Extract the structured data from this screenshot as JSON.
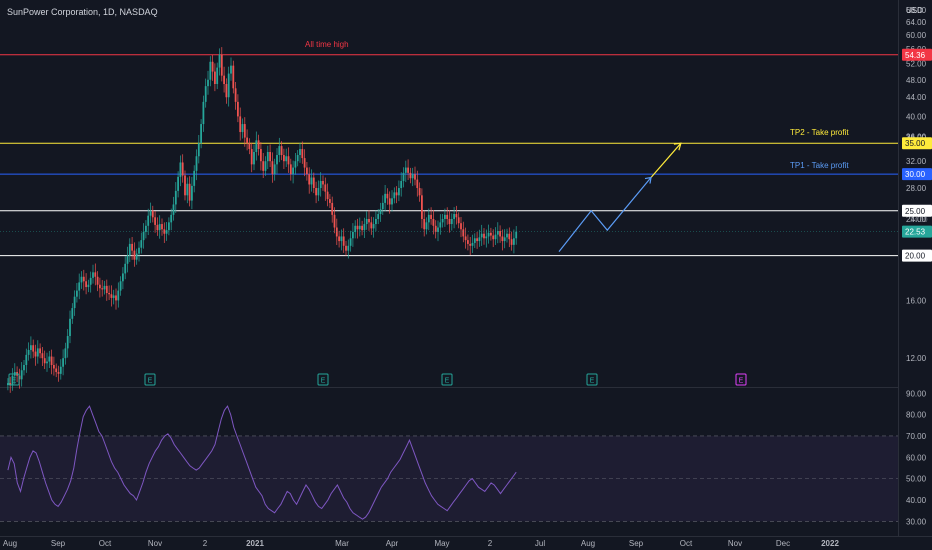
{
  "header": {
    "title": "SunPower Corporation, 1D, NASDAQ"
  },
  "currency": "USD",
  "colors": {
    "background": "#131722",
    "up": "#26a69a",
    "down": "#ef5350",
    "rsi": "#7e57c2",
    "ath_line": "#f23645",
    "tp2_line": "#ffeb3b",
    "tp1_line": "#2962ff",
    "support_line": "#ffffff",
    "projection": "#5b9cf6",
    "current_price_badge": "#26a69a"
  },
  "chart_data": {
    "type": "candlestick",
    "price_axis": {
      "min": 10.5,
      "max": 70,
      "ticks": [
        12,
        16,
        20,
        24,
        28,
        32,
        36,
        40,
        44,
        48,
        52,
        56,
        60,
        64,
        68
      ],
      "labels": [
        "12.00",
        "16.00",
        "20.00",
        "24.00",
        "28.00",
        "32.00",
        "36.00",
        "40.00",
        "44.00",
        "48.00",
        "52.00",
        "56.00",
        "60.00",
        "64.00",
        "68.00"
      ]
    },
    "rsi_axis": {
      "min": 25,
      "max": 92,
      "ticks": [
        30,
        40,
        50,
        60,
        70,
        80,
        90
      ],
      "labels": [
        "30.00",
        "40.00",
        "50.00",
        "60.00",
        "70.00",
        "80.00",
        "90.00"
      ],
      "upper_band": 70,
      "mid": 50,
      "lower_band": 30
    },
    "time_axis": [
      "Aug",
      "Sep",
      "Oct",
      "Nov",
      "2",
      "2021",
      "Mar",
      "Apr",
      "May",
      "2",
      "Jul",
      "Aug",
      "Sep",
      "Oct",
      "Nov",
      "Dec",
      "2022"
    ],
    "earnings_markers": [
      "E",
      "E",
      "E",
      "E",
      "E",
      "E"
    ],
    "closes": [
      10.6,
      10.5,
      11.0,
      11.2,
      11.0,
      10.8,
      11.3,
      11.6,
      12.2,
      12.5,
      12.8,
      12.4,
      12.1,
      12.6,
      12.3,
      12.0,
      11.7,
      11.8,
      12.1,
      11.6,
      11.4,
      11.2,
      11.1,
      11.5,
      12.0,
      12.6,
      13.4,
      14.6,
      15.4,
      16.3,
      16.8,
      17.5,
      18.0,
      17.6,
      17.1,
      17.3,
      17.9,
      18.4,
      18.0,
      17.3,
      17.0,
      16.9,
      17.2,
      16.6,
      16.5,
      16.2,
      16.4,
      16.0,
      16.8,
      17.6,
      18.3,
      19.2,
      20.0,
      21.2,
      20.5,
      19.6,
      20.2,
      20.8,
      21.6,
      22.5,
      23.2,
      24.4,
      25.0,
      24.2,
      23.3,
      22.7,
      23.4,
      22.8,
      22.3,
      22.7,
      23.6,
      24.5,
      25.8,
      27.6,
      29.6,
      31.8,
      29.8,
      27.0,
      28.6,
      26.3,
      28.3,
      30.5,
      32.8,
      35.0,
      38.5,
      43.0,
      46.5,
      48.0,
      52.5,
      50.0,
      47.0,
      51.0,
      54.4,
      49.0,
      47.0,
      44.0,
      49.5,
      51.5,
      46.0,
      43.0,
      40.0,
      37.0,
      38.5,
      36.0,
      35.0,
      34.0,
      31.5,
      33.5,
      35.5,
      34.0,
      32.0,
      30.5,
      32.0,
      33.5,
      32.0,
      30.0,
      31.5,
      33.0,
      34.5,
      33.0,
      32.0,
      32.8,
      31.5,
      30.0,
      31.0,
      32.0,
      33.0,
      34.0,
      32.5,
      31.0,
      30.0,
      28.5,
      29.5,
      28.0,
      27.0,
      28.0,
      29.0,
      28.5,
      27.5,
      26.5,
      26.0,
      24.5,
      23.0,
      22.0,
      21.5,
      22.0,
      21.0,
      20.5,
      21.0,
      21.8,
      22.5,
      23.2,
      22.8,
      23.2,
      22.7,
      23.4,
      24.0,
      23.6,
      22.9,
      23.4,
      24.0,
      24.6,
      25.2,
      26.0,
      27.2,
      26.6,
      25.8,
      26.6,
      27.4,
      27.0,
      28.0,
      29.0,
      30.2,
      31.0,
      30.2,
      29.4,
      30.0,
      29.2,
      28.0,
      27.0,
      24.0,
      22.8,
      23.6,
      24.5,
      24.0,
      23.2,
      22.5,
      23.0,
      23.6,
      24.0,
      24.5,
      24.0,
      23.4,
      24.0,
      24.6,
      24.2,
      23.5,
      22.8,
      22.0,
      21.6,
      21.2,
      21.0,
      21.3,
      21.8,
      21.5,
      21.9,
      22.3,
      21.8,
      22.0,
      22.4,
      22.1,
      21.7,
      22.2,
      22.6,
      22.0,
      21.5,
      21.9,
      22.3,
      21.7,
      21.1,
      21.8,
      22.53
    ],
    "current_price": 22.53,
    "current_price_label": "22.53",
    "hidden_label_value": 24.0,
    "rsi": [
      54,
      60,
      57,
      48,
      44,
      50,
      55,
      60,
      63,
      62,
      58,
      53,
      48,
      44,
      40,
      38,
      37,
      39,
      42,
      45,
      49,
      55,
      64,
      72,
      79,
      82,
      84,
      80,
      76,
      72,
      70,
      66,
      62,
      58,
      55,
      53,
      50,
      47,
      45,
      43,
      42,
      40,
      44,
      48,
      53,
      57,
      60,
      63,
      65,
      68,
      70,
      71,
      69,
      66,
      64,
      62,
      60,
      58,
      56,
      55,
      54,
      55,
      57,
      59,
      61,
      63,
      66,
      72,
      78,
      82,
      84,
      80,
      74,
      70,
      66,
      62,
      58,
      54,
      50,
      46,
      44,
      42,
      38,
      36,
      35,
      34,
      36,
      38,
      41,
      44,
      43,
      40,
      38,
      41,
      44,
      47,
      45,
      42,
      39,
      37,
      36,
      38,
      40,
      43,
      45,
      47,
      44,
      41,
      39,
      36,
      34,
      33,
      32,
      31,
      32,
      34,
      37,
      40,
      43,
      46,
      48,
      50,
      53,
      55,
      57,
      59,
      62,
      65,
      68,
      64,
      60,
      56,
      52,
      48,
      45,
      42,
      40,
      38,
      37,
      36,
      35,
      37,
      39,
      41,
      43,
      45,
      47,
      49,
      50,
      48,
      46,
      45,
      44,
      46,
      48,
      47,
      45,
      43,
      45,
      47,
      49,
      51,
      53
    ],
    "levels": [
      {
        "value": 54.36,
        "label": "54.36",
        "color": "#f23645",
        "text": "All time high"
      },
      {
        "value": 35.0,
        "label": "35.00",
        "color": "#ffeb3b",
        "text": "TP2 - Take profit",
        "overlap_label": "36.00"
      },
      {
        "value": 30.0,
        "label": "30.00",
        "color": "#2962ff",
        "text": "TP1 - Take profit"
      },
      {
        "value": 25.0,
        "label": "25.00",
        "color": "#ffffff",
        "text": ""
      },
      {
        "value": 20.0,
        "label": "20.00",
        "color": "#ffffff",
        "text": ""
      }
    ],
    "projection": [
      {
        "bar": 240,
        "price": 20.4
      },
      {
        "bar": 254,
        "price": 25.0
      },
      {
        "bar": 261,
        "price": 22.7
      },
      {
        "bar": 280,
        "price": 29.5
      }
    ],
    "tp2_arrow": [
      {
        "bar": 280,
        "price": 29.5
      },
      {
        "bar": 293,
        "price": 35.0
      }
    ]
  }
}
